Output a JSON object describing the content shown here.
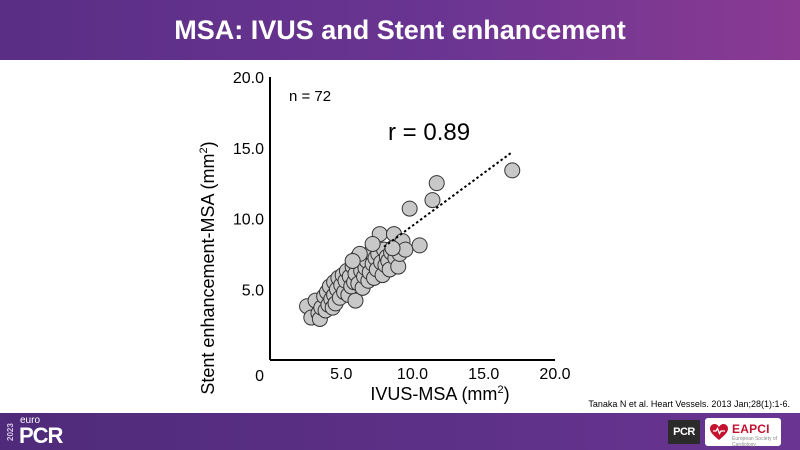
{
  "slide": {
    "title": "MSA: IVUS and Stent enhancement",
    "citation": "Tanaka N et al. Heart Vessels. 2013 Jan;28(1):1-6."
  },
  "footer": {
    "brand_year": "2023",
    "brand_prefix": "euro",
    "brand_name": "PCR",
    "badge_pcr": "PCR",
    "badge_eapci": "EAPCI",
    "badge_eapci_sub": "European Society of Cardiology",
    "colors": {
      "bar": "#5e3188",
      "eapci_red": "#c4122f"
    }
  },
  "chart_data": {
    "type": "scatter",
    "title": "",
    "xlabel": "IVUS-MSA (mm",
    "xlabel_sup": "2",
    "xlabel_suffix": ")",
    "ylabel": "Stent enhancement-MSA (mm",
    "ylabel_sup": "2",
    "ylabel_suffix": ")",
    "xlim": [
      0,
      20
    ],
    "ylim": [
      0,
      20
    ],
    "xticks": [
      {
        "value": 5,
        "label": "5.0"
      },
      {
        "value": 10,
        "label": "10.0"
      },
      {
        "value": 15,
        "label": "15.0"
      },
      {
        "value": 20,
        "label": "20.0"
      }
    ],
    "yticks": [
      {
        "value": 5,
        "label": "5.0"
      },
      {
        "value": 10,
        "label": "10.0"
      },
      {
        "value": 15,
        "label": "15.0"
      },
      {
        "value": 20,
        "label": "20.0"
      }
    ],
    "origin_label": "0",
    "annotations": {
      "n": "n = 72",
      "r": "r = 0.89"
    },
    "fit_line": {
      "x1": 8.0,
      "y1": 8.0,
      "x2": 17.0,
      "y2": 14.7
    },
    "marker_color": "#c8c8c8",
    "points": [
      [
        2.6,
        3.8
      ],
      [
        2.9,
        3.0
      ],
      [
        3.2,
        4.2
      ],
      [
        3.4,
        3.3
      ],
      [
        3.5,
        2.9
      ],
      [
        3.6,
        3.7
      ],
      [
        3.8,
        4.5
      ],
      [
        3.9,
        3.5
      ],
      [
        4.0,
        4.8
      ],
      [
        4.1,
        3.9
      ],
      [
        4.2,
        5.2
      ],
      [
        4.3,
        4.3
      ],
      [
        4.4,
        3.7
      ],
      [
        4.5,
        5.5
      ],
      [
        4.5,
        4.6
      ],
      [
        4.6,
        4.0
      ],
      [
        4.7,
        5.0
      ],
      [
        4.8,
        5.8
      ],
      [
        4.9,
        4.4
      ],
      [
        5.0,
        5.3
      ],
      [
        5.1,
        6.0
      ],
      [
        5.2,
        4.8
      ],
      [
        5.3,
        5.6
      ],
      [
        5.4,
        6.3
      ],
      [
        5.5,
        4.6
      ],
      [
        5.6,
        5.9
      ],
      [
        5.7,
        5.2
      ],
      [
        5.8,
        6.6
      ],
      [
        5.9,
        5.5
      ],
      [
        6.0,
        4.2
      ],
      [
        6.0,
        6.1
      ],
      [
        6.1,
        7.2
      ],
      [
        6.2,
        5.4
      ],
      [
        6.3,
        6.8
      ],
      [
        6.4,
        6.3
      ],
      [
        6.5,
        7.4
      ],
      [
        6.5,
        5.1
      ],
      [
        6.6,
        5.9
      ],
      [
        6.7,
        6.5
      ],
      [
        6.8,
        7.0
      ],
      [
        6.9,
        5.6
      ],
      [
        7.0,
        6.2
      ],
      [
        7.1,
        7.6
      ],
      [
        7.2,
        6.8
      ],
      [
        7.3,
        5.8
      ],
      [
        7.4,
        7.2
      ],
      [
        7.5,
        6.4
      ],
      [
        7.6,
        7.5
      ],
      [
        7.7,
        8.9
      ],
      [
        7.8,
        6.9
      ],
      [
        7.9,
        6.0
      ],
      [
        8.0,
        7.8
      ],
      [
        8.1,
        6.7
      ],
      [
        8.2,
        7.3
      ],
      [
        8.3,
        7.0
      ],
      [
        8.4,
        6.4
      ],
      [
        8.5,
        7.6
      ],
      [
        8.7,
        8.9
      ],
      [
        8.8,
        7.2
      ],
      [
        9.0,
        6.6
      ],
      [
        9.1,
        7.5
      ],
      [
        9.3,
        8.4
      ],
      [
        9.5,
        7.8
      ],
      [
        9.8,
        10.7
      ],
      [
        10.5,
        8.1
      ],
      [
        11.4,
        11.3
      ],
      [
        11.7,
        12.5
      ],
      [
        17.0,
        13.4
      ],
      [
        6.3,
        7.5
      ],
      [
        5.8,
        7.0
      ],
      [
        7.2,
        8.2
      ],
      [
        8.6,
        7.9
      ]
    ]
  }
}
